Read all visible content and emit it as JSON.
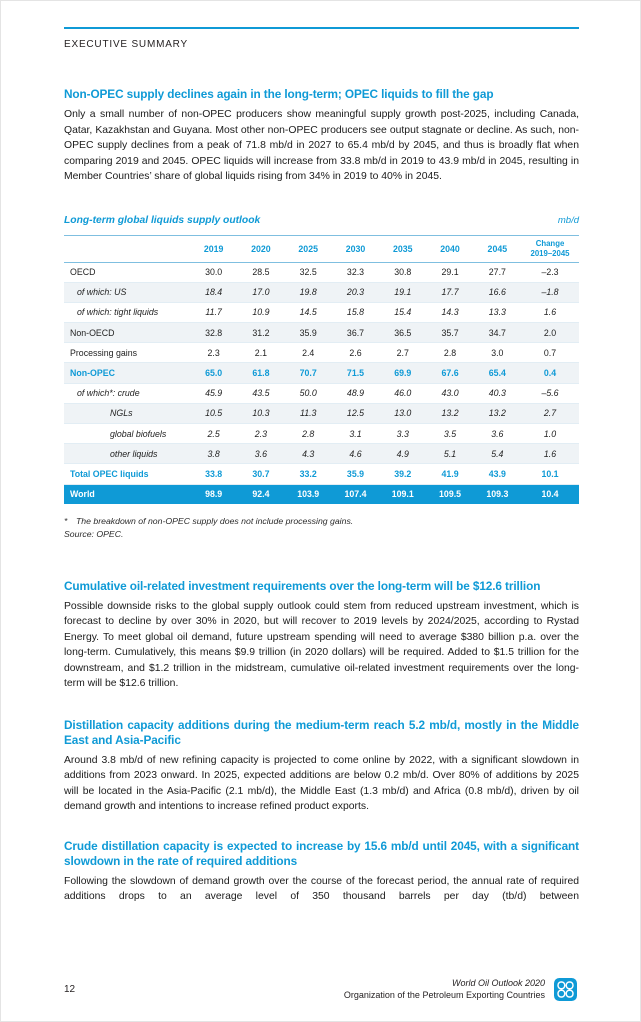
{
  "page": {
    "eyebrow": "EXECUTIVE SUMMARY",
    "accent_color": "#0f9ad6"
  },
  "sections": [
    {
      "heading": "Non-OPEC supply declines again in the long-term; OPEC liquids to fill the gap",
      "body": "Only a small number of non-OPEC producers show meaningful supply growth post-2025, including Canada, Qatar, Kazakhstan and Guyana. Most other non-OPEC producers see output stagnate or decline. As such, non-OPEC supply declines from a peak of 71.8 mb/d in 2027 to 65.4 mb/d by 2045, and thus is broadly flat when comparing 2019 and 2045. OPEC liquids will increase from 33.8 mb/d in 2019 to 43.9 mb/d in 2045, resulting in Member Countries’ share of global liquids rising from 34% in 2019 to 40% in 2045."
    },
    {
      "heading": "Cumulative oil-related investment requirements over the long-term will be $12.6 trillion",
      "body": "Possible downside risks to the global supply outlook could stem from reduced upstream investment, which is forecast to decline by over 30% in 2020, but will recover to 2019 levels by 2024/2025, according to Rystad Energy. To meet global oil demand, future upstream spending will need to average $380 billion p.a. over the long-term. Cumulatively, this means $9.9 trillion (in 2020 dollars) will be required. Added to $1.5 trillion for the downstream, and $1.2 trillion in the midstream, cumulative oil-related investment requirements over the long-term will be $12.6 trillion."
    },
    {
      "heading": "Distillation capacity additions during the medium-term reach 5.2 mb/d, mostly in the Middle East and Asia-Pacific",
      "body": "Around 3.8 mb/d of new refining capacity is projected to come online by 2022, with a significant slowdown in additions from 2023 onward. In 2025, expected additions are below 0.2 mb/d. Over 80% of additions by 2025 will be located in the Asia-Pacific (2.1 mb/d), the Middle East (1.3 mb/d) and Africa (0.8 mb/d), driven by oil demand growth and intentions to increase refined product exports."
    },
    {
      "heading": "Crude distillation capacity is expected to increase by 15.6 mb/d until 2045, with a significant slowdown in the rate of required additions",
      "body": "Following the slowdown of demand growth over the course of the forecast period, the annual rate of required additions drops to an average level of 350 thousand barrels per day (tb/d) between"
    }
  ],
  "table": {
    "title": "Long-term global liquids supply outlook",
    "unit": "mb/d",
    "columns": [
      "2019",
      "2020",
      "2025",
      "2030",
      "2035",
      "2040",
      "2045",
      "Change\n2019–2045"
    ],
    "rows": [
      {
        "label": "OECD",
        "style": "normal",
        "shaded": false,
        "values": [
          "30.0",
          "28.5",
          "32.5",
          "32.3",
          "30.8",
          "29.1",
          "27.7",
          "–2.3"
        ]
      },
      {
        "label": "of which: US",
        "style": "italic",
        "shaded": true,
        "values": [
          "18.4",
          "17.0",
          "19.8",
          "20.3",
          "19.1",
          "17.7",
          "16.6",
          "–1.8"
        ]
      },
      {
        "label": "of which: tight liquids",
        "style": "italic",
        "shaded": false,
        "values": [
          "11.7",
          "10.9",
          "14.5",
          "15.8",
          "15.4",
          "14.3",
          "13.3",
          "1.6"
        ]
      },
      {
        "label": "Non-OECD",
        "style": "normal",
        "shaded": true,
        "values": [
          "32.8",
          "31.2",
          "35.9",
          "36.7",
          "36.5",
          "35.7",
          "34.7",
          "2.0"
        ]
      },
      {
        "label": "Processing gains",
        "style": "normal",
        "shaded": false,
        "values": [
          "2.3",
          "2.1",
          "2.4",
          "2.6",
          "2.7",
          "2.8",
          "3.0",
          "0.7"
        ]
      },
      {
        "label": "Non-OPEC",
        "style": "blue",
        "shaded": true,
        "values": [
          "65.0",
          "61.8",
          "70.7",
          "71.5",
          "69.9",
          "67.6",
          "65.4",
          "0.4"
        ]
      },
      {
        "label": "of which*: crude",
        "style": "italic",
        "shaded": false,
        "values": [
          "45.9",
          "43.5",
          "50.0",
          "48.9",
          "46.0",
          "43.0",
          "40.3",
          "–5.6"
        ]
      },
      {
        "label": "NGLs",
        "style": "sub",
        "shaded": true,
        "values": [
          "10.5",
          "10.3",
          "11.3",
          "12.5",
          "13.0",
          "13.2",
          "13.2",
          "2.7"
        ]
      },
      {
        "label": "global biofuels",
        "style": "sub",
        "shaded": false,
        "values": [
          "2.5",
          "2.3",
          "2.8",
          "3.1",
          "3.3",
          "3.5",
          "3.6",
          "1.0"
        ]
      },
      {
        "label": "other liquids",
        "style": "sub",
        "shaded": true,
        "values": [
          "3.8",
          "3.6",
          "4.3",
          "4.6",
          "4.9",
          "5.1",
          "5.4",
          "1.6"
        ]
      },
      {
        "label": "Total OPEC liquids",
        "style": "blue",
        "shaded": false,
        "values": [
          "33.8",
          "30.7",
          "33.2",
          "35.9",
          "39.2",
          "41.9",
          "43.9",
          "10.1"
        ]
      },
      {
        "label": "World",
        "style": "world",
        "shaded": false,
        "values": [
          "98.9",
          "92.4",
          "103.9",
          "107.4",
          "109.1",
          "109.5",
          "109.3",
          "10.4"
        ]
      }
    ],
    "footnote_marker": "*",
    "footnote": "The breakdown of non-OPEC supply does not include processing gains.",
    "source": "Source: OPEC."
  },
  "footer": {
    "page_number": "12",
    "publication": "World Oil Outlook 2020",
    "organization": "Organization of the Petroleum Exporting Countries"
  }
}
